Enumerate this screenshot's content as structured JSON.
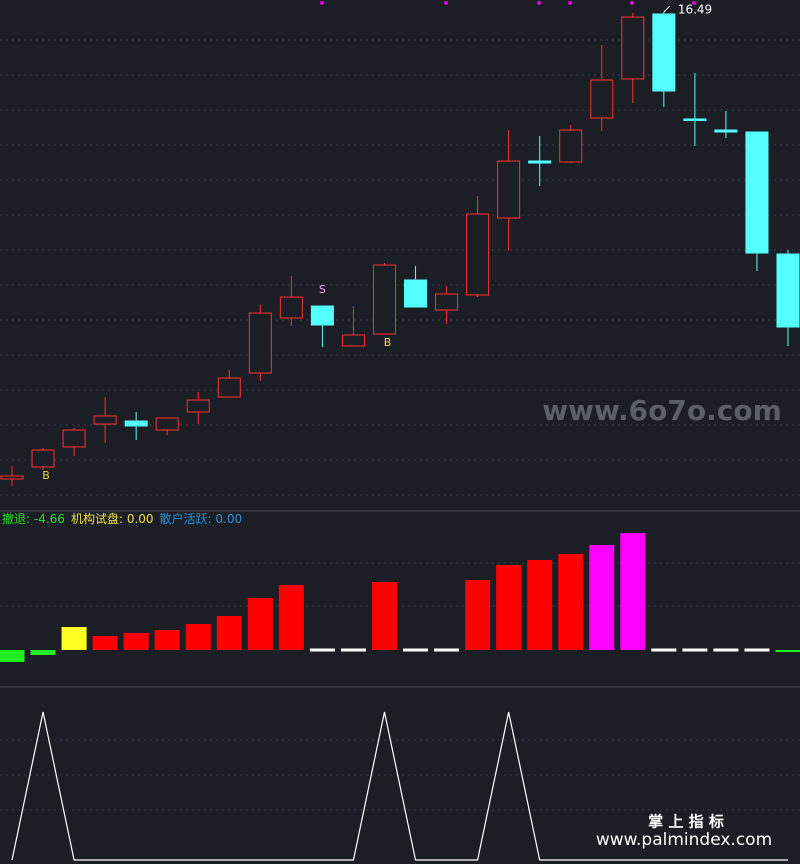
{
  "chart_data": [
    {
      "type": "candlestick",
      "open": [
        11.82,
        11.94,
        12.14,
        12.37,
        12.4,
        12.31,
        12.49,
        12.64,
        12.88,
        13.43,
        13.55,
        13.15,
        13.27,
        13.81,
        13.51,
        13.66,
        14.43,
        15.0,
        14.99,
        15.43,
        15.82,
        16.47,
        15.42,
        15.31,
        15.29,
        14.07
      ],
      "high": [
        11.95,
        12.13,
        12.33,
        12.64,
        12.49,
        12.43,
        12.69,
        12.91,
        13.56,
        13.85,
        13.55,
        13.55,
        13.98,
        13.95,
        13.75,
        14.65,
        15.31,
        15.25,
        15.36,
        16.16,
        16.48,
        16.49,
        15.88,
        15.5,
        15.29,
        14.11
      ],
      "low": [
        11.75,
        11.91,
        12.05,
        12.18,
        12.21,
        12.26,
        12.37,
        12.64,
        12.8,
        13.35,
        13.14,
        13.15,
        13.27,
        13.54,
        13.37,
        13.64,
        14.1,
        14.75,
        14.98,
        15.3,
        15.58,
        15.54,
        15.15,
        15.23,
        13.9,
        13.15
      ],
      "close": [
        11.85,
        12.11,
        12.31,
        12.45,
        12.35,
        12.43,
        12.61,
        12.83,
        13.48,
        13.64,
        13.36,
        13.26,
        13.96,
        13.54,
        13.67,
        14.47,
        15.0,
        14.98,
        15.31,
        15.81,
        16.44,
        15.7,
        15.41,
        15.29,
        14.08,
        13.34
      ],
      "ylim": [
        11.51,
        16.61
      ],
      "up_color": "#ff3030",
      "down_color": "#54ffff",
      "high_label": 16.49,
      "signals": [
        null,
        "B",
        null,
        null,
        null,
        null,
        null,
        null,
        null,
        null,
        "S",
        null,
        "B",
        null,
        null,
        null,
        null,
        null,
        null,
        null,
        null,
        null,
        null,
        null,
        null,
        null
      ],
      "signal_color": {
        "B": "#e8d84a",
        "S": "#ff9cff"
      }
    },
    {
      "type": "bar",
      "header": [
        {
          "label": "撤退:",
          "value_label": "-4.66",
          "color": "#22e022"
        },
        {
          "label": "机构试盘:",
          "value_label": "0.00",
          "color": "#f0e040"
        },
        {
          "label": "散户活跃:",
          "value_label": "0.00",
          "color": "#2a90d8"
        }
      ],
      "values": [
        -12,
        -5,
        23,
        14,
        17,
        20,
        26,
        34,
        52,
        65,
        0,
        0,
        68,
        0,
        0,
        70,
        85,
        90,
        96,
        105,
        117,
        0,
        0,
        0,
        0,
        -4.66
      ],
      "colors": [
        "#22ee22",
        "#22ee22",
        "#ffff22",
        "#ff0000",
        "#ff0000",
        "#ff0000",
        "#ff0000",
        "#ff0000",
        "#ff0000",
        "#ff0000",
        "#ffffff",
        "#ffffff",
        "#ff0000",
        "#ffffff",
        "#ffffff",
        "#ff0000",
        "#ff0000",
        "#ff0000",
        "#ff0000",
        "#ff00ff",
        "#ff00ff",
        "#ffffff",
        "#ffffff",
        "#ffffff",
        "#ffffff",
        "#22ee22"
      ],
      "ylim": [
        -36,
        138
      ]
    },
    {
      "type": "line",
      "values": [
        0,
        1,
        0,
        0,
        0,
        0,
        0,
        0,
        0,
        0,
        0,
        0,
        1,
        0,
        0,
        0,
        1,
        0,
        0,
        0,
        0,
        0,
        0,
        0,
        0,
        0
      ],
      "color": "#ffffff",
      "ylim": [
        0,
        1
      ]
    }
  ],
  "watermarks": [
    "www.6o7o.com",
    "掌 上 指 标",
    "www.palmindex.com"
  ]
}
